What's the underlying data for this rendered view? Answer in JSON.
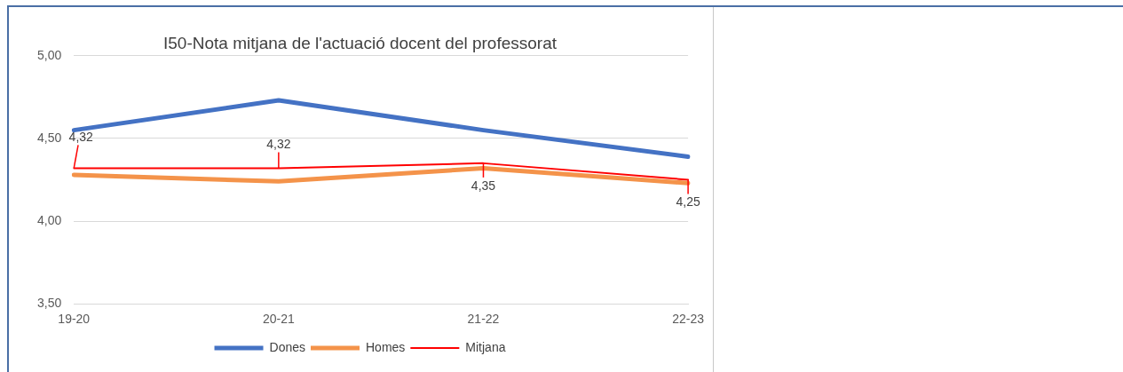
{
  "chart_data": {
    "type": "line",
    "title": "I50-Nota mitjana de l'actuació docent del professorat",
    "categories": [
      "19-20",
      "20-21",
      "21-22",
      "22-23"
    ],
    "series": [
      {
        "name": "Dones",
        "color": "#4472c4",
        "values": [
          4.55,
          4.73,
          4.55,
          4.39
        ]
      },
      {
        "name": "Homes",
        "color": "#f4934a",
        "values": [
          4.28,
          4.24,
          4.32,
          4.23
        ]
      },
      {
        "name": "Mitjana",
        "color": "#ff0000",
        "values": [
          4.32,
          4.32,
          4.35,
          4.25
        ],
        "value_labels": [
          "4,32",
          "4,32",
          "4,35",
          "4,25"
        ]
      }
    ],
    "ylim": [
      3.5,
      5
    ],
    "yticks": [
      {
        "value": 3.5,
        "label": "3,50"
      },
      {
        "value": 4,
        "label": "4,00"
      },
      {
        "value": 4.5,
        "label": "4,50"
      },
      {
        "value": 5,
        "label": "5,00"
      }
    ],
    "grid": "y",
    "legend": "bottom",
    "marker": "none",
    "line_style": "solid"
  }
}
